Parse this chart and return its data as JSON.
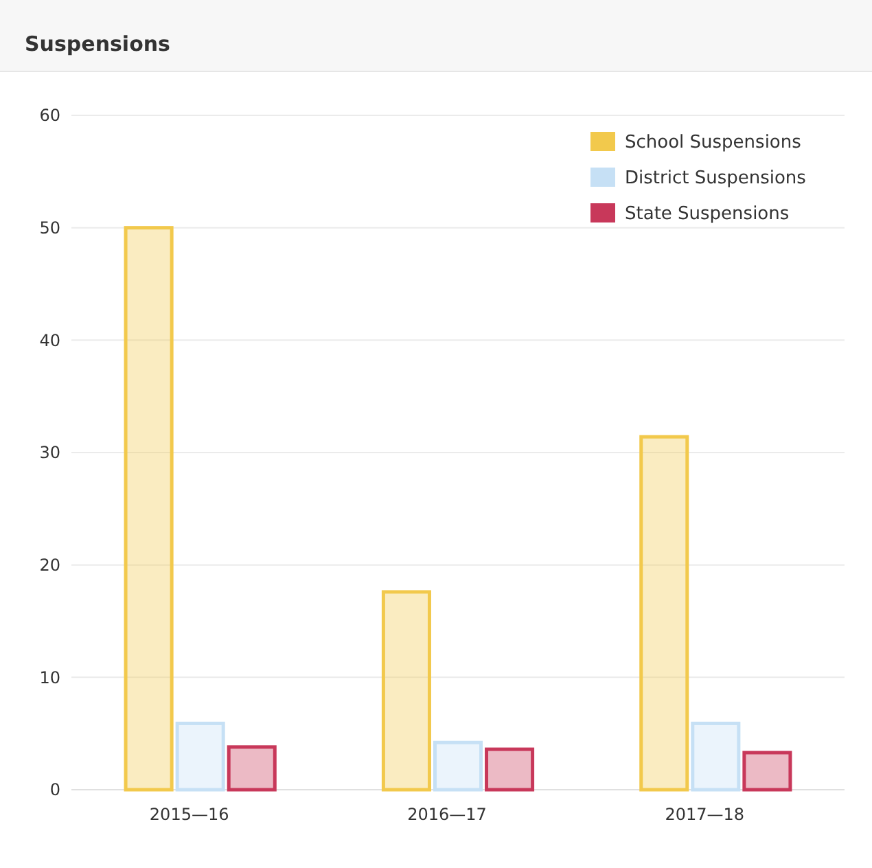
{
  "chart_data": {
    "type": "bar",
    "title": "Suspensions",
    "categories": [
      "2015—16",
      "2016—17",
      "2017—18"
    ],
    "series": [
      {
        "name": "School Suspensions",
        "color": "#f2c94c",
        "values": [
          50,
          17.6,
          31.4
        ]
      },
      {
        "name": "District Suspensions",
        "color": "#c6e0f5",
        "values": [
          5.9,
          4.2,
          5.9
        ]
      },
      {
        "name": "State Suspensions",
        "color": "#c8385a",
        "values": [
          3.8,
          3.6,
          3.3
        ]
      }
    ],
    "ylim": [
      0,
      60
    ],
    "yticks": [
      0,
      10,
      20,
      30,
      40,
      50,
      60
    ],
    "grid": "y",
    "legend": "top right"
  }
}
